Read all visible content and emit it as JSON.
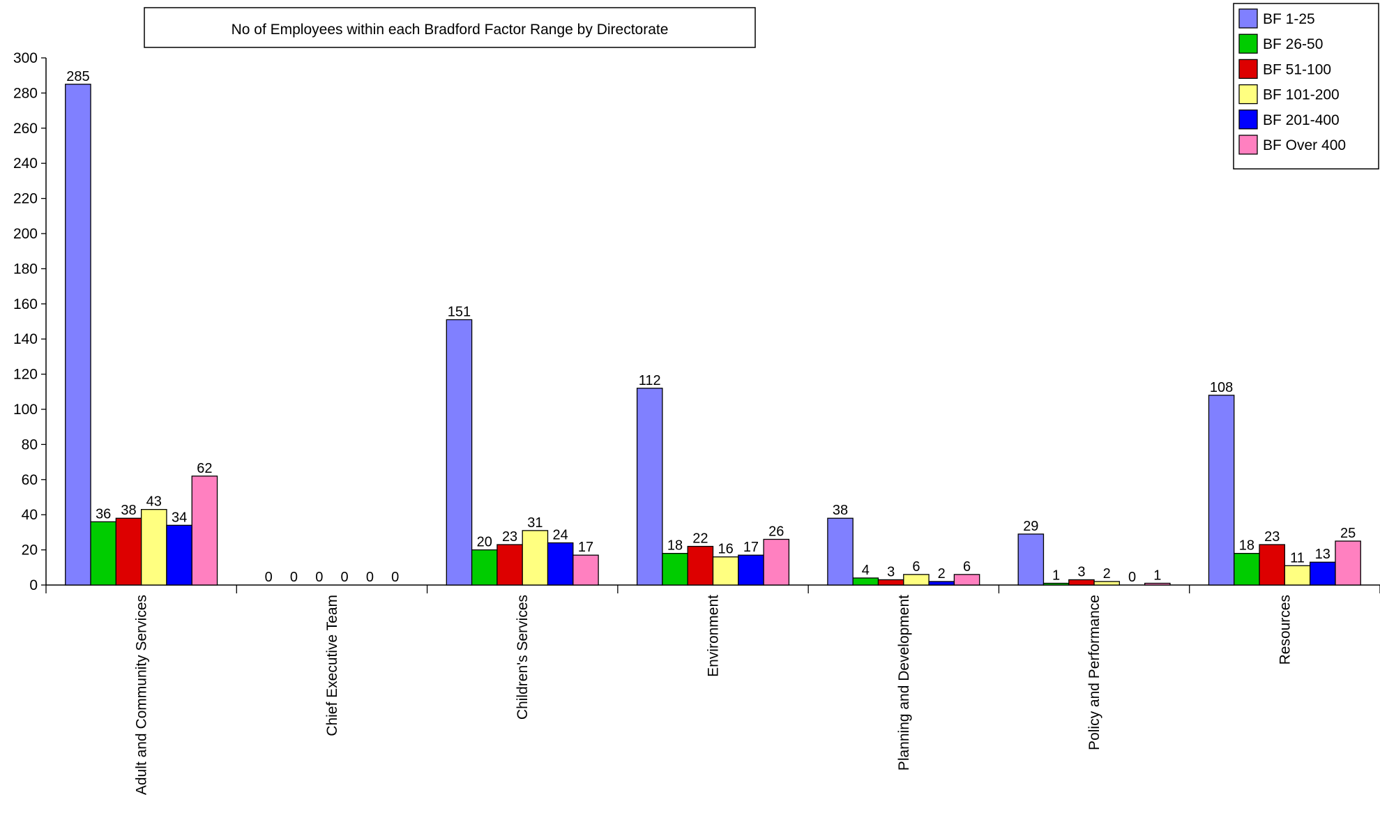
{
  "chart_data": {
    "type": "bar",
    "title": "No of Employees within each Bradford Factor Range by Directorate",
    "xlabel": "",
    "ylabel": "",
    "ylim": [
      0,
      300
    ],
    "ytick_step": 20,
    "grid": false,
    "legend_position": "top-right",
    "categories": [
      "Adult and Community Services",
      "Chief Executive Team",
      "Children's Services",
      "Environment",
      "Planning and Development",
      "Policy and Performance",
      "Resources"
    ],
    "series": [
      {
        "name": "BF 1-25",
        "color": "#8080ff",
        "values": [
          285,
          0,
          151,
          112,
          38,
          29,
          108
        ]
      },
      {
        "name": "BF 26-50",
        "color": "#00cc00",
        "values": [
          36,
          0,
          20,
          18,
          4,
          1,
          18
        ]
      },
      {
        "name": "BF 51-100",
        "color": "#dd0000",
        "values": [
          38,
          0,
          23,
          22,
          3,
          3,
          23
        ]
      },
      {
        "name": "BF 101-200",
        "color": "#ffff80",
        "values": [
          43,
          0,
          31,
          16,
          6,
          2,
          11
        ]
      },
      {
        "name": "BF 201-400",
        "color": "#0000ff",
        "values": [
          34,
          0,
          24,
          17,
          2,
          0,
          13
        ]
      },
      {
        "name": "BF  Over 400",
        "color": "#ff80c0",
        "values": [
          62,
          0,
          17,
          26,
          6,
          1,
          25
        ]
      }
    ]
  }
}
